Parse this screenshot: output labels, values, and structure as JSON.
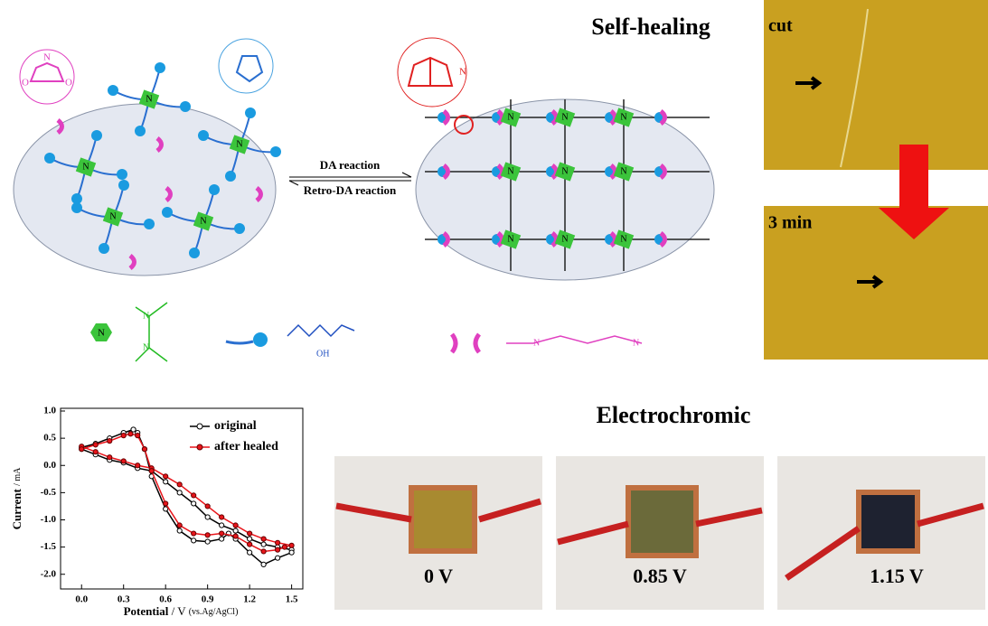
{
  "network": {
    "forward": "DA reaction",
    "reverse": "Retro-DA reaction",
    "node_label": "N",
    "hydroxyl": "OH",
    "oxygen": "O"
  },
  "self_healing": {
    "title": "Self-healing",
    "photos": [
      "cut",
      "3 min"
    ]
  },
  "electrochromic": {
    "title": "Electrochromic",
    "photos": [
      "0 V",
      "0.85 V",
      "1.15 V"
    ]
  },
  "chart_data": {
    "type": "line",
    "xlabel": "Potential",
    "xlabel_unit": "/ V",
    "xlabel_note": "(vs.Ag/AgCl)",
    "ylabel": "Current",
    "ylabel_unit": "/ mA",
    "xlim": [
      -0.15,
      1.58
    ],
    "ylim": [
      -2.27,
      1.05
    ],
    "xticks": [
      {
        "value": 0,
        "label": "0.0"
      },
      0.3,
      0.6,
      0.9,
      1.2,
      1.5
    ],
    "yticks": [
      {
        "value": 1,
        "label": "1.0"
      },
      0.5,
      {
        "value": 0,
        "label": "0.0"
      },
      -0.5,
      {
        "value": -1,
        "label": "-1.0"
      },
      -1.5,
      {
        "value": -2,
        "label": "-2.0"
      }
    ],
    "legend": "upper right",
    "series": [
      {
        "name": "original",
        "color": "#000000",
        "x": [
          0,
          0.1,
          0.2,
          0.3,
          0.4,
          0.5,
          0.6,
          0.7,
          0.8,
          0.9,
          1.0,
          1.1,
          1.2,
          1.3,
          1.4,
          1.5,
          1.5,
          1.4,
          1.3,
          1.2,
          1.1,
          1.05,
          1.0,
          0.9,
          0.8,
          0.7,
          0.6,
          0.5,
          0.45,
          0.4,
          0.37,
          0.3,
          0.2,
          0.1,
          0
        ],
        "values": [
          0.3,
          0.2,
          0.1,
          0.05,
          -0.05,
          -0.1,
          -0.3,
          -0.5,
          -0.7,
          -0.95,
          -1.1,
          -1.2,
          -1.35,
          -1.45,
          -1.5,
          -1.55,
          -1.6,
          -1.7,
          -1.82,
          -1.6,
          -1.35,
          -1.25,
          -1.35,
          -1.4,
          -1.38,
          -1.2,
          -0.8,
          -0.2,
          0.3,
          0.6,
          0.66,
          0.6,
          0.5,
          0.4,
          0.33
        ]
      },
      {
        "name": "after healed",
        "color": "#e8151b",
        "x": [
          0,
          0.1,
          0.2,
          0.3,
          0.4,
          0.5,
          0.6,
          0.7,
          0.8,
          0.9,
          1.0,
          1.1,
          1.2,
          1.3,
          1.4,
          1.5,
          1.45,
          1.4,
          1.3,
          1.2,
          1.1,
          1.0,
          0.9,
          0.8,
          0.7,
          0.6,
          0.5,
          0.45,
          0.4,
          0.35,
          0.3,
          0.2,
          0.1,
          0
        ],
        "values": [
          0.35,
          0.25,
          0.15,
          0.08,
          0.0,
          -0.05,
          -0.2,
          -0.35,
          -0.55,
          -0.75,
          -0.95,
          -1.1,
          -1.25,
          -1.35,
          -1.42,
          -1.47,
          -1.5,
          -1.55,
          -1.58,
          -1.45,
          -1.3,
          -1.25,
          -1.28,
          -1.25,
          -1.1,
          -0.7,
          -0.1,
          0.3,
          0.55,
          0.58,
          0.55,
          0.45,
          0.38,
          0.3
        ]
      }
    ]
  }
}
